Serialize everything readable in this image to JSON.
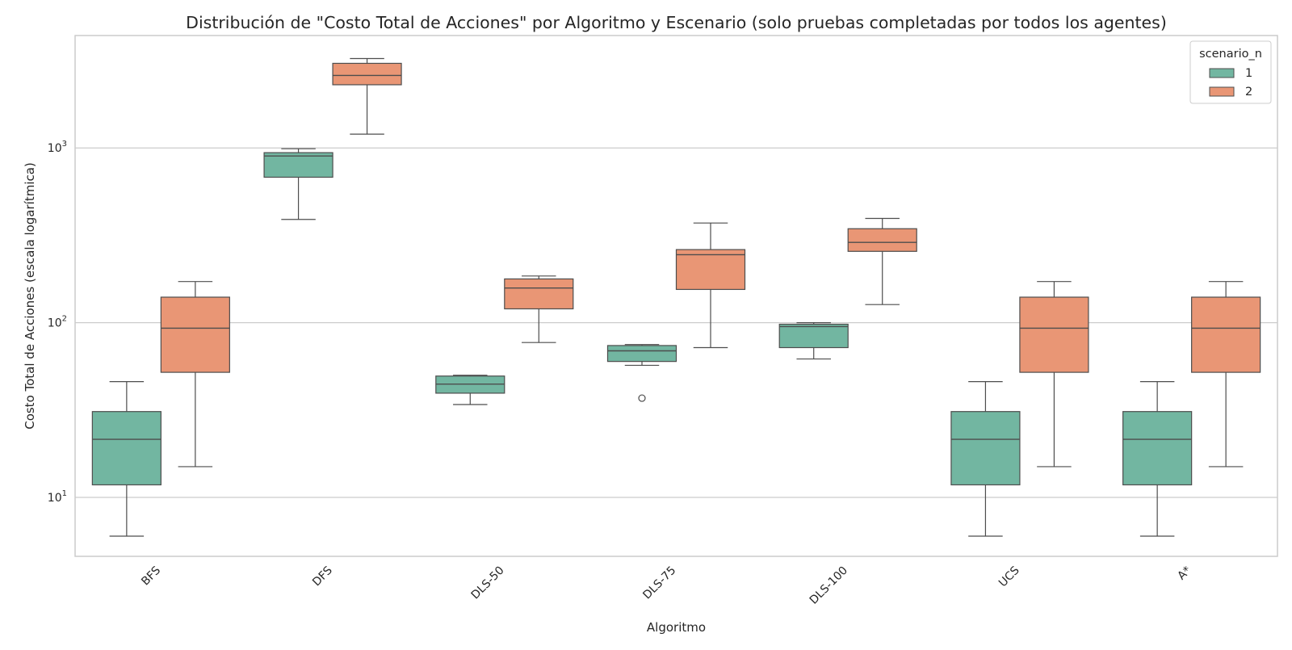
{
  "chart_data": {
    "type": "box",
    "title": "Distribución de \"Costo Total de Acciones\" por Algoritmo y Escenario (solo pruebas completadas por todos los agentes)",
    "xlabel": "Algoritmo",
    "ylabel": "Costo Total de Acciones (escala logarítmica)",
    "y_scale": "log",
    "ylim": [
      4.6,
      4400
    ],
    "y_ticks": [
      {
        "value": 10,
        "base": "10",
        "exp": "1"
      },
      {
        "value": 100,
        "base": "10",
        "exp": "2"
      },
      {
        "value": 1000,
        "base": "10",
        "exp": "3"
      }
    ],
    "grid": "horizontal",
    "categories": [
      "BFS",
      "DFS",
      "DLS-50",
      "DLS-75",
      "DLS-100",
      "UCS",
      "A*"
    ],
    "legend": {
      "title": "scenario_n",
      "position": "top-right"
    },
    "series": [
      {
        "name": "1",
        "color": "#72b6a1",
        "boxes": [
          {
            "min": 6,
            "q1": 11.8,
            "median": 21.5,
            "q3": 31,
            "max": 46,
            "outliers": []
          },
          {
            "min": 390,
            "q1": 680,
            "median": 900,
            "q3": 940,
            "max": 990,
            "outliers": []
          },
          {
            "min": 34,
            "q1": 39.5,
            "median": 44.5,
            "q3": 49.5,
            "max": 50,
            "outliers": []
          },
          {
            "min": 57,
            "q1": 60,
            "median": 69,
            "q3": 74,
            "max": 75,
            "outliers": [
              37
            ]
          },
          {
            "min": 62,
            "q1": 72,
            "median": 95,
            "q3": 98,
            "max": 100,
            "outliers": []
          },
          {
            "min": 6,
            "q1": 11.8,
            "median": 21.5,
            "q3": 31,
            "max": 46,
            "outliers": []
          },
          {
            "min": 6,
            "q1": 11.8,
            "median": 21.5,
            "q3": 31,
            "max": 46,
            "outliers": []
          }
        ]
      },
      {
        "name": "2",
        "color": "#e99675",
        "boxes": [
          {
            "min": 15,
            "q1": 52,
            "median": 93,
            "q3": 140,
            "max": 172,
            "outliers": []
          },
          {
            "min": 1200,
            "q1": 2300,
            "median": 2600,
            "q3": 3050,
            "max": 3250,
            "outliers": []
          },
          {
            "min": 77,
            "q1": 120,
            "median": 158,
            "q3": 178,
            "max": 185,
            "outliers": []
          },
          {
            "min": 72,
            "q1": 155,
            "median": 245,
            "q3": 262,
            "max": 372,
            "outliers": []
          },
          {
            "min": 127,
            "q1": 256,
            "median": 288,
            "q3": 345,
            "max": 395,
            "outliers": []
          },
          {
            "min": 15,
            "q1": 52,
            "median": 93,
            "q3": 140,
            "max": 172,
            "outliers": []
          },
          {
            "min": 15,
            "q1": 52,
            "median": 93,
            "q3": 140,
            "max": 172,
            "outliers": []
          }
        ]
      }
    ]
  }
}
